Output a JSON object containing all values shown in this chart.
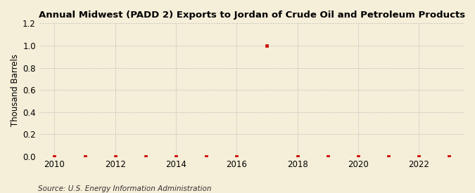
{
  "title": "Annual Midwest (PADD 2) Exports to Jordan of Crude Oil and Petroleum Products",
  "ylabel": "Thousand Barrels",
  "source": "Source: U.S. Energy Information Administration",
  "years": [
    2010,
    2011,
    2012,
    2013,
    2014,
    2015,
    2016,
    2017,
    2018,
    2019,
    2020,
    2021,
    2022,
    2023
  ],
  "values": [
    0,
    0,
    0,
    0,
    0,
    0,
    0,
    1.0,
    0,
    0,
    0,
    0,
    0,
    0
  ],
  "xlim": [
    2009.5,
    2023.5
  ],
  "ylim": [
    0.0,
    1.2
  ],
  "yticks": [
    0.0,
    0.2,
    0.4,
    0.6,
    0.8,
    1.0,
    1.2
  ],
  "xticks": [
    2010,
    2012,
    2014,
    2016,
    2018,
    2020,
    2022
  ],
  "marker_color": "#cc0000",
  "background_color": "#f5eed8",
  "grid_color": "#bbbbbb",
  "title_fontsize": 9.5,
  "label_fontsize": 8.5,
  "tick_fontsize": 8.5,
  "source_fontsize": 7.5
}
